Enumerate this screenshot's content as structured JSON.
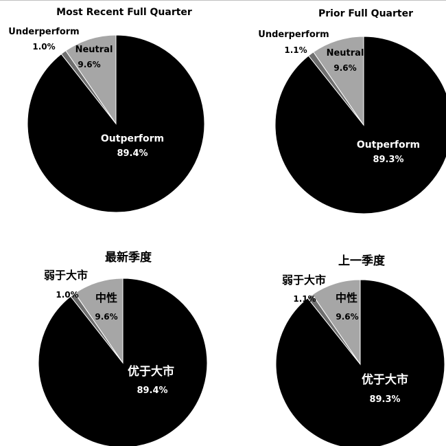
{
  "chart_data": [
    {
      "type": "pie",
      "title": "Most Recent Full Quarter",
      "series": [
        {
          "name": "Outperform",
          "value": 89.4,
          "label": "89.4%",
          "color": "#000000"
        },
        {
          "name": "Underperform",
          "value": 1.0,
          "label": "1.0%",
          "color": "#6f6f6f"
        },
        {
          "name": "Neutral",
          "value": 9.6,
          "label": "9.6%",
          "color": "#a6a6a6"
        }
      ]
    },
    {
      "type": "pie",
      "title": "Prior Full Quarter",
      "series": [
        {
          "name": "Outperform",
          "value": 89.3,
          "label": "89.3%",
          "color": "#000000"
        },
        {
          "name": "Underperform",
          "value": 1.1,
          "label": "1.1%",
          "color": "#6f6f6f"
        },
        {
          "name": "Neutral",
          "value": 9.6,
          "label": "9.6%",
          "color": "#a6a6a6"
        }
      ]
    },
    {
      "type": "pie",
      "title": "最新季度",
      "series": [
        {
          "name": "优于大市",
          "value": 89.4,
          "label": "89.4%",
          "color": "#000000"
        },
        {
          "name": "弱于大市",
          "value": 1.0,
          "label": "1.0%",
          "color": "#6f6f6f"
        },
        {
          "name": "中性",
          "value": 9.6,
          "label": "9.6%",
          "color": "#a6a6a6"
        }
      ]
    },
    {
      "type": "pie",
      "title": "上一季度",
      "series": [
        {
          "name": "优于大市",
          "value": 89.3,
          "label": "89.3%",
          "color": "#000000"
        },
        {
          "name": "弱于大市",
          "value": 1.1,
          "label": "1.1%",
          "color": "#6f6f6f"
        },
        {
          "name": "中性",
          "value": 9.6,
          "label": "9.6%",
          "color": "#a6a6a6"
        }
      ]
    }
  ]
}
